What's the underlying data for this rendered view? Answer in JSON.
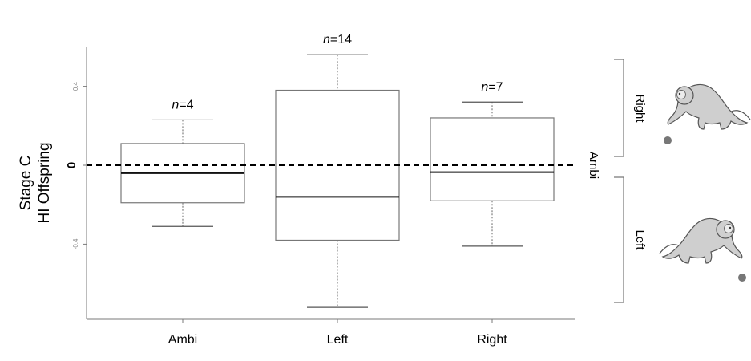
{
  "chart_data": {
    "type": "boxplot",
    "ylabel_lines": [
      "Stage C",
      "HI Offspring"
    ],
    "categories": [
      "Ambi",
      "Left",
      "Right"
    ],
    "ylim": [
      -0.8,
      0.6
    ],
    "y_ticks": [
      {
        "value": 0.4,
        "label": "0.4"
      },
      {
        "value": 0.0,
        "label": "0"
      },
      {
        "value": -0.4,
        "label": "-0.4"
      }
    ],
    "reference_line": {
      "y": 0,
      "style": "dashed",
      "label": "Ambi"
    },
    "boxes": [
      {
        "category": "Ambi",
        "n_label": "n=4",
        "whisker_low": -0.31,
        "q1": -0.19,
        "median": -0.04,
        "q3": 0.11,
        "whisker_high": 0.23
      },
      {
        "category": "Left",
        "n_label": "n=14",
        "whisker_low": -0.72,
        "q1": -0.38,
        "median": -0.16,
        "q3": 0.38,
        "whisker_high": 0.56
      },
      {
        "category": "Right",
        "n_label": "n=7",
        "whisker_low": -0.41,
        "q1": -0.18,
        "median": -0.035,
        "q3": 0.24,
        "whisker_high": 0.32
      }
    ],
    "side_brackets": [
      {
        "label": "Right"
      },
      {
        "label": "Left"
      }
    ],
    "grid": false,
    "icons": [
      "monkey-reaching-right-icon",
      "monkey-reaching-left-icon"
    ]
  }
}
